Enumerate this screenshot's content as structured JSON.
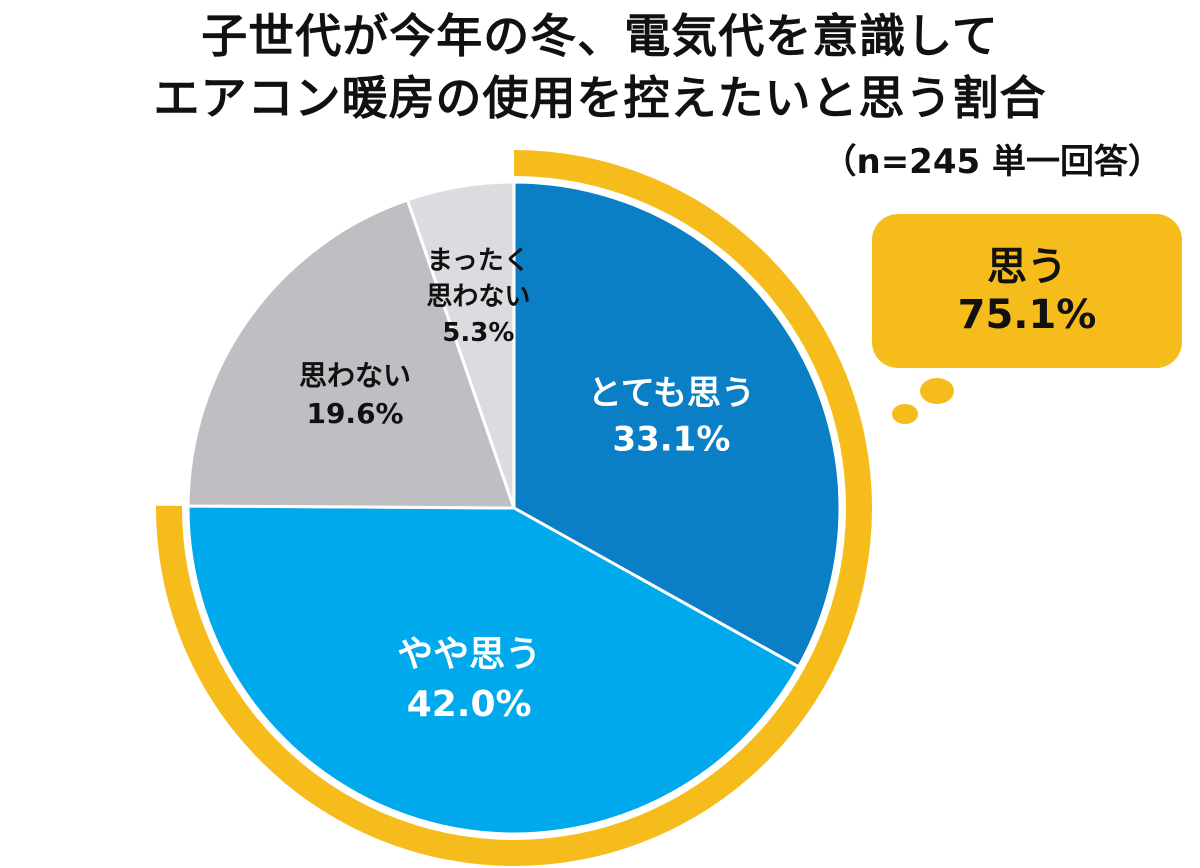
{
  "title": {
    "line1": "子世代が今年の冬、電気代を意識して",
    "line2": "エアコン暖房の使用を控えたいと思う割合"
  },
  "note": "（n=245 単一回答）",
  "chart_data": {
    "type": "pie",
    "title": "子世代が今年の冬、電気代を意識してエアコン暖房の使用を控えたいと思う割合",
    "note": "（n=245 単一回答）",
    "start_angle": "12 o'clock",
    "direction": "clockwise",
    "slices": [
      {
        "label": "とても思う",
        "value": 33.1,
        "display": "33.1%",
        "color": "#0b7fc6",
        "text_color": "#ffffff"
      },
      {
        "label": "やや思う",
        "value": 42.0,
        "display": "42.0%",
        "color": "#00a9eb",
        "text_color": "#ffffff"
      },
      {
        "label": "思わない",
        "value": 19.6,
        "display": "19.6%",
        "color": "#bfbec2",
        "text_color": "#111111"
      },
      {
        "label": "まったく思わない",
        "label_lines": [
          "まったく",
          "思わない"
        ],
        "value": 5.3,
        "display": "5.3%",
        "color": "#dcdbdf",
        "text_color": "#111111"
      }
    ],
    "highlight": {
      "label": "思う",
      "value": 75.1,
      "display": "75.1%",
      "covers": [
        "とても思う",
        "やや思う"
      ],
      "color": "#f5bc1c"
    }
  }
}
